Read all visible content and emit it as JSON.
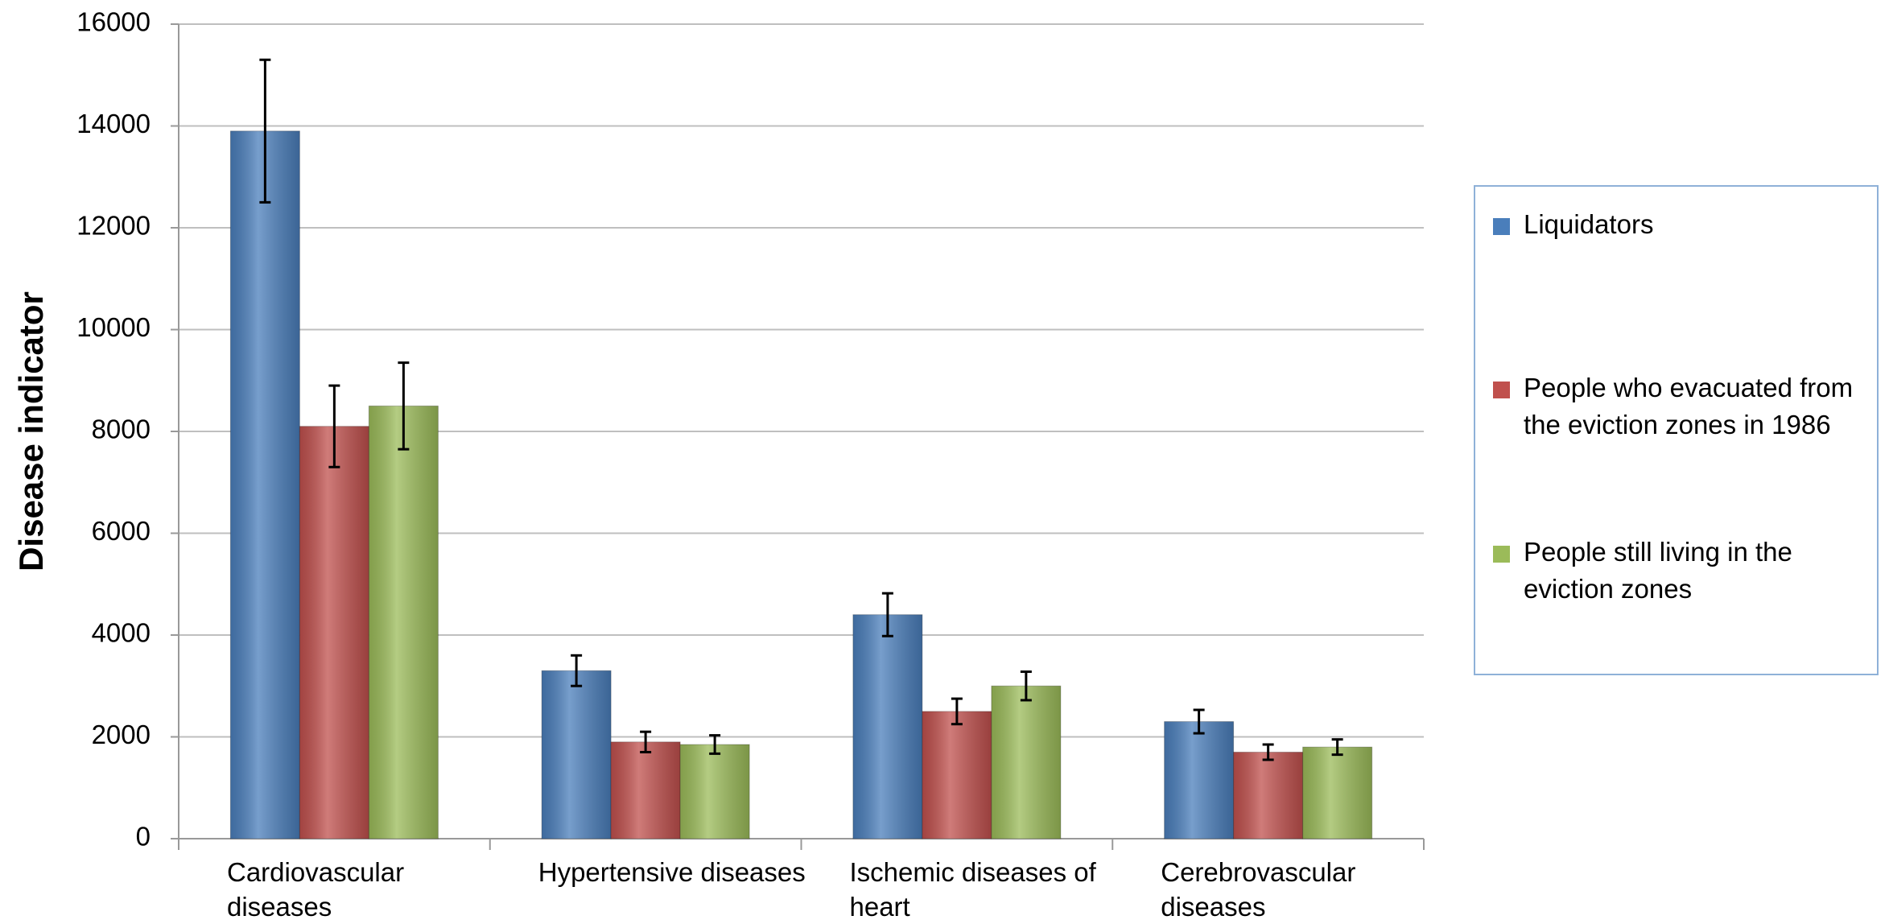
{
  "chart_data": {
    "type": "bar",
    "y_label": "Disease indicator",
    "categories": [
      "Cardiovascular diseases",
      "Hypertensive diseases",
      "Ischemic diseases of heart",
      "Cerebrovascular diseases"
    ],
    "series": [
      {
        "name": "Liquidators",
        "color": "#4a7ebb",
        "values": [
          13900,
          3300,
          4400,
          2300
        ],
        "errors": [
          1400,
          300,
          420,
          230
        ]
      },
      {
        "name": "People who evacuated from the eviction zones in 1986",
        "color": "#c0504d",
        "values": [
          8100,
          1900,
          2500,
          1700
        ],
        "errors": [
          800,
          200,
          250,
          150
        ]
      },
      {
        "name": "People still living in the eviction zones",
        "color": "#9bbb59",
        "values": [
          8500,
          1850,
          3000,
          1800
        ],
        "errors": [
          850,
          180,
          280,
          150
        ]
      }
    ],
    "ylim": [
      0,
      16000
    ],
    "yticks": [
      0,
      2000,
      4000,
      6000,
      8000,
      10000,
      12000,
      14000,
      16000
    ],
    "grid": true,
    "legend": "right"
  }
}
